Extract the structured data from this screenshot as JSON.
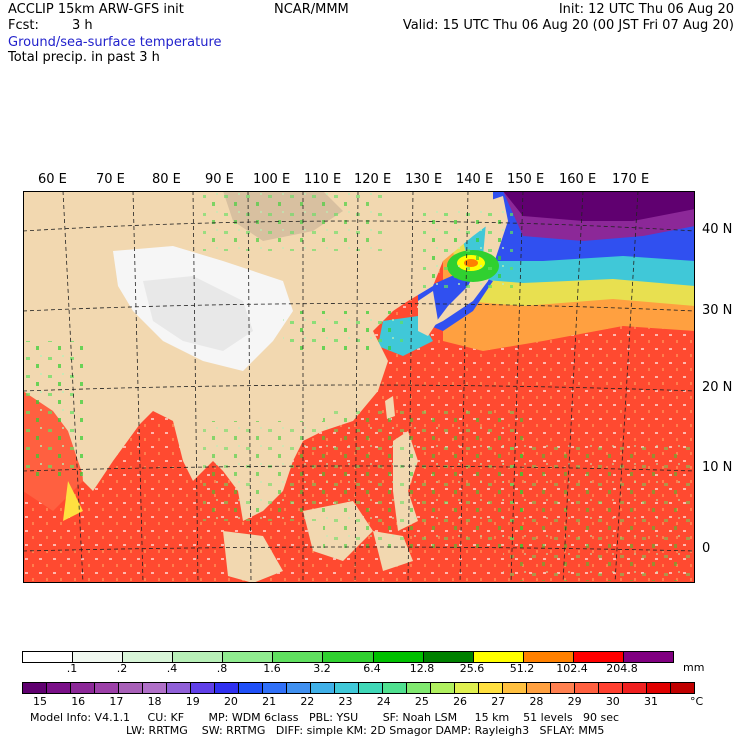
{
  "header": {
    "model": "ACCLIP 15km ARW-GFS init",
    "fcst_label": "Fcst:",
    "fcst_value": "3 h",
    "center": "NCAR/MMM",
    "init": "Init: 12 UTC Thu 06 Aug 20",
    "valid": "Valid: 15 UTC Thu 06 Aug 20 (00 JST Fri 07 Aug 20)",
    "field1": "Ground/sea-surface temperature",
    "field2": "Total precip. in past 3 h"
  },
  "lon_labels": [
    "60 E",
    "70 E",
    "80 E",
    "90 E",
    "100 E",
    "110 E",
    "120 E",
    "130 E",
    "140 E",
    "150 E",
    "160 E",
    "170 E"
  ],
  "lat_labels": [
    "40 N",
    "30 N",
    "20 N",
    "10 N",
    "0"
  ],
  "precip_bar": {
    "colors": [
      "#ffffff",
      "#f0f8f0",
      "#d8f5d8",
      "#b8f0b8",
      "#90ec90",
      "#60e060",
      "#30d030",
      "#00c000",
      "#008000",
      "#ffff00",
      "#ff8000",
      "#ff0000",
      "#800080"
    ],
    "labels": [
      ".1",
      ".2",
      ".4",
      ".8",
      "1.6",
      "3.2",
      "6.4",
      "12.8",
      "25.6",
      "51.2",
      "102.4",
      "204.8"
    ],
    "unit": "mm"
  },
  "temp_bar": {
    "colors": [
      "#600070",
      "#7a1088",
      "#8c2898",
      "#9c40a8",
      "#a860b8",
      "#b070c8",
      "#9060d8",
      "#6040e8",
      "#3030f0",
      "#2050f8",
      "#3070f8",
      "#4090f0",
      "#40b0e8",
      "#40c8d8",
      "#40d8b8",
      "#50e090",
      "#80e870",
      "#b0f060",
      "#e0f050",
      "#ffe040",
      "#ffc040",
      "#ffa040",
      "#ff8050",
      "#ff6040",
      "#ff4030",
      "#f02020",
      "#e00000",
      "#c00000"
    ],
    "labels": [
      "15",
      "16",
      "17",
      "18",
      "19",
      "20",
      "21",
      "22",
      "23",
      "24",
      "25",
      "26",
      "27",
      "28",
      "29",
      "30",
      "31"
    ],
    "unit": "°C"
  },
  "footer": {
    "line1": "Model Info: V4.1.1     CU: KF       MP: WDM 6class   PBL: YSU       SF: Noah LSM     15 km    51 levels   90 sec",
    "line2": "LW: RRTMG    SW: RRTMG   DIFF: simple KM: 2D Smagor DAMP: Rayleigh3   SFLAY: MM5"
  }
}
